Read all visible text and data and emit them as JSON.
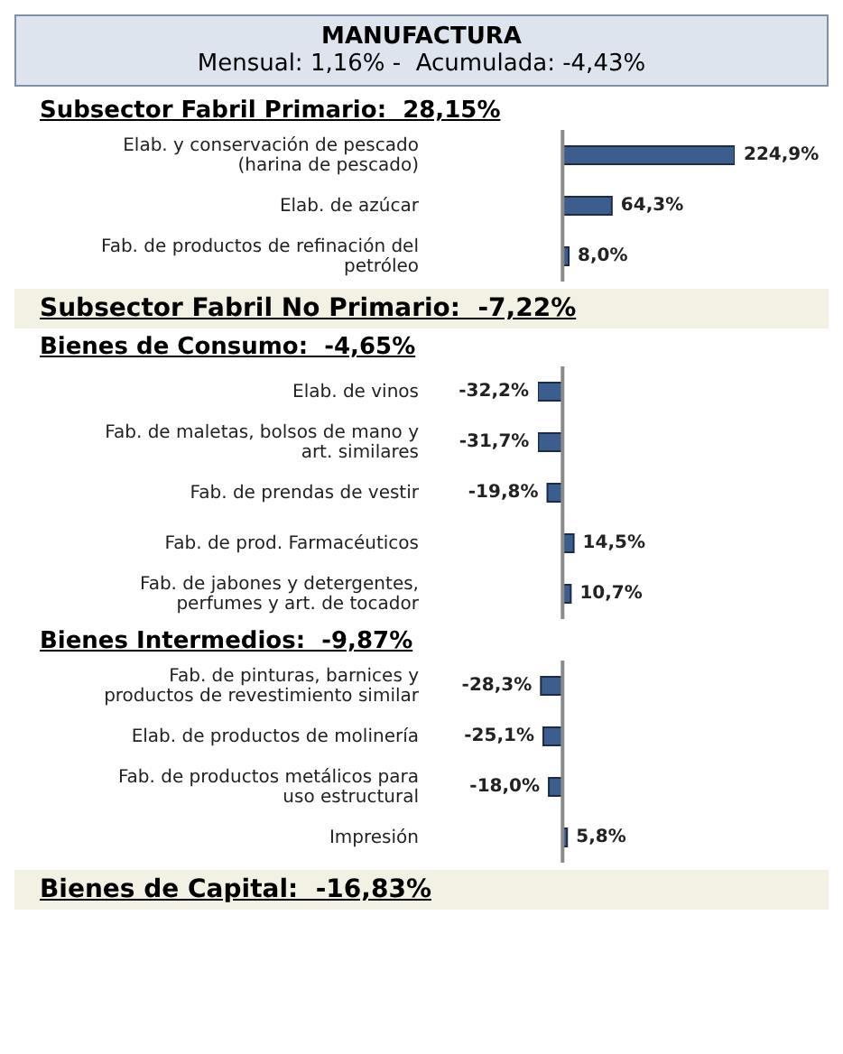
{
  "chart_data": [
    {
      "type": "other",
      "title": "MANUFACTURA",
      "subtitle": "Mensual: 1,16% -  Acumulada: -4,43%"
    },
    {
      "type": "bar",
      "orientation": "horizontal",
      "title": "Subsector Fabril Primario:  28,15%",
      "categories": [
        "Elab. y conservación de pescado (harina de pescado)",
        "Elab. de azúcar",
        "Fab. de productos de refinación del petróleo"
      ],
      "values": [
        224.9,
        64.3,
        8.0
      ],
      "value_labels": [
        "224,9%",
        "64,3%",
        "8,0%"
      ],
      "color": "#3b5e8f",
      "ref_lines": [
        {
          "axis": "x",
          "value": 0
        }
      ]
    },
    {
      "type": "other",
      "title": "Subsector Fabril No Primario:  -7,22%"
    },
    {
      "type": "bar",
      "orientation": "horizontal",
      "title": "Bienes de Consumo:  -4,65%",
      "categories": [
        "Elab. de vinos",
        "Fab. de maletas, bolsos de mano y art. similares",
        "Fab. de prendas de vestir",
        "Fab. de prod. Farmacéuticos",
        "Fab. de jabones y detergentes, perfumes y art. de tocador"
      ],
      "values": [
        -32.2,
        -31.7,
        -19.8,
        14.5,
        10.7
      ],
      "value_labels": [
        "-32,2%",
        "-31,7%",
        "-19,8%",
        "14,5%",
        "10,7%"
      ],
      "color": "#3b5e8f",
      "ref_lines": [
        {
          "axis": "x",
          "value": 0
        }
      ]
    },
    {
      "type": "bar",
      "orientation": "horizontal",
      "title": "Bienes Intermedios:  -9,87%",
      "categories": [
        "Fab. de pinturas, barnices y productos de revestimiento similar",
        "Elab. de productos de molinería",
        "Fab. de productos metálicos para uso estructural",
        "Impresión"
      ],
      "values": [
        -28.3,
        -25.1,
        -18.0,
        5.8
      ],
      "value_labels": [
        "-28,3%",
        "-25,1%",
        "-18,0%",
        "5,8%"
      ],
      "color": "#3b5e8f",
      "ref_lines": [
        {
          "axis": "x",
          "value": 0
        }
      ]
    },
    {
      "type": "other",
      "title": "Bienes de Capital:  -16,83%"
    }
  ]
}
